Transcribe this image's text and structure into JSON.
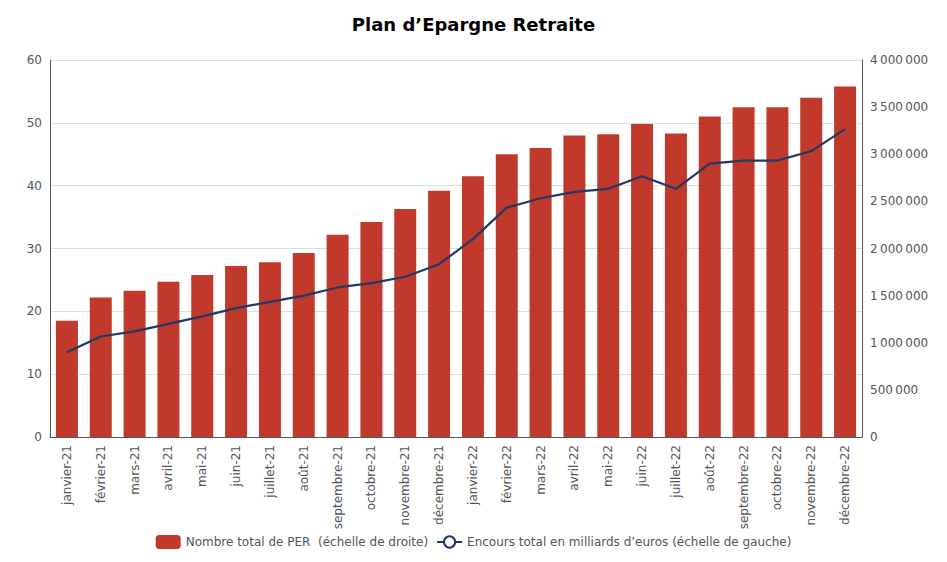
{
  "chart_data": {
    "type": "bar",
    "title": "Plan d’Epargne Retraite",
    "categories": [
      "janvier-21",
      "février-21",
      "mars-21",
      "avril-21",
      "mai-21",
      "juin-21",
      "juillet-21",
      "août-21",
      "septembre-21",
      "octobre-21",
      "novembre-21",
      "décembre-21",
      "janvier-22",
      "février-22",
      "mars-22",
      "avril-22",
      "mai-22",
      "juin-22",
      "juillet-22",
      "août-22",
      "septembre-22",
      "octobre-22",
      "novembre-22",
      "décembre-22"
    ],
    "series": [
      {
        "name": "Nombre total de PER  (échelle de droite)",
        "type": "bar",
        "color": "#C0392B",
        "axis": "y2",
        "values": [
          1233000,
          1480000,
          1553000,
          1647000,
          1720000,
          1813000,
          1853000,
          1953000,
          2147000,
          2280000,
          2420000,
          2613000,
          2767000,
          3000000,
          3067000,
          3200000,
          3213000,
          3320000,
          3220000,
          3400000,
          3500000,
          3500000,
          3600000,
          3720000
        ]
      },
      {
        "name": "Encours total en milliards d’euros (échelle de gauche)",
        "type": "line",
        "color": "#1F3864",
        "values": [
          13.5,
          16.0,
          16.8,
          18.0,
          19.2,
          20.5,
          21.5,
          22.5,
          23.8,
          24.5,
          25.5,
          27.5,
          31.5,
          36.5,
          38.0,
          39.0,
          39.5,
          41.5,
          39.5,
          43.5,
          44.0,
          44.0,
          45.5,
          49.0
        ]
      }
    ],
    "ylim": [
      0,
      60
    ],
    "yticks": [
      0,
      10,
      20,
      30,
      40,
      50,
      60
    ],
    "y2lim": [
      0,
      4000000
    ],
    "y2ticks": [
      0,
      {
        "value": 500000,
        "label": "500 000"
      },
      {
        "value": 1000000,
        "label": "1 000 000"
      },
      {
        "value": 1500000,
        "label": "1 500 000"
      },
      {
        "value": 2000000,
        "label": "2 000 000"
      },
      {
        "value": 2500000,
        "label": "2 500 000"
      },
      {
        "value": 3000000,
        "label": "3 000 000"
      },
      {
        "value": 3500000,
        "label": "3 500 000"
      },
      {
        "value": 4000000,
        "label": "4 000 000"
      }
    ],
    "grid": true,
    "legend": "bottom"
  }
}
